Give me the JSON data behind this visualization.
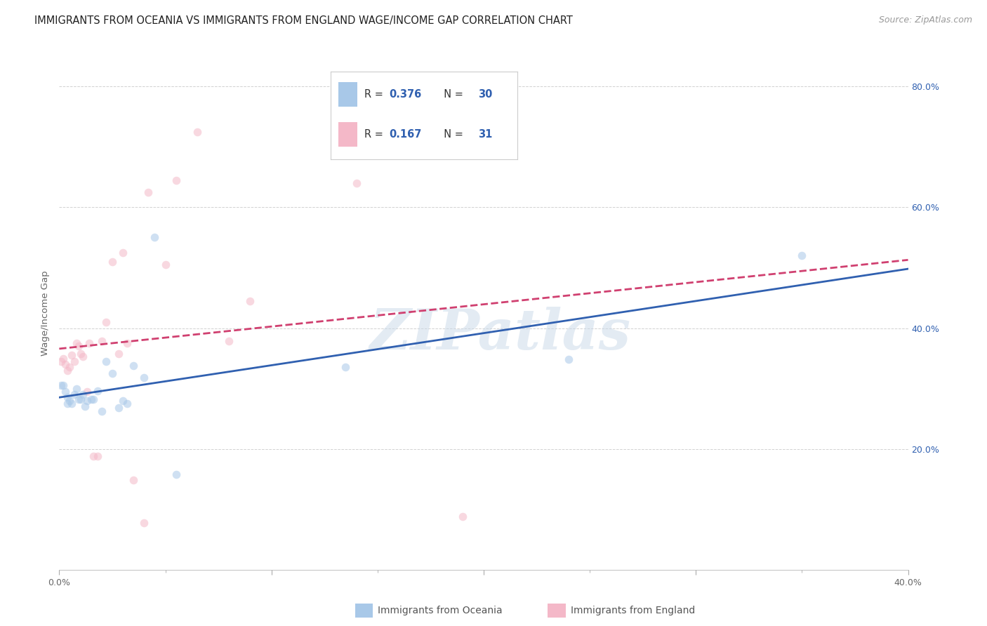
{
  "title": "IMMIGRANTS FROM OCEANIA VS IMMIGRANTS FROM ENGLAND WAGE/INCOME GAP CORRELATION CHART",
  "source": "Source: ZipAtlas.com",
  "ylabel": "Wage/Income Gap",
  "watermark": "ZIPatlas",
  "x_min": 0.0,
  "x_max": 0.4,
  "y_min": 0.0,
  "y_max": 0.85,
  "y_tick_vals": [
    0.2,
    0.4,
    0.6,
    0.8
  ],
  "y_tick_labels_right": [
    "20.0%",
    "40.0%",
    "60.0%",
    "80.0%"
  ],
  "oceania_R": 0.376,
  "oceania_N": 30,
  "england_R": 0.167,
  "england_N": 31,
  "oceania_color": "#a8c8e8",
  "england_color": "#f4b8c8",
  "oceania_line_color": "#3060b0",
  "england_line_color": "#d04070",
  "background_color": "#ffffff",
  "grid_color": "#cccccc",
  "oceania_x": [
    0.001,
    0.002,
    0.003,
    0.004,
    0.004,
    0.005,
    0.006,
    0.007,
    0.008,
    0.009,
    0.01,
    0.011,
    0.012,
    0.013,
    0.015,
    0.016,
    0.018,
    0.02,
    0.022,
    0.025,
    0.028,
    0.03,
    0.032,
    0.035,
    0.04,
    0.045,
    0.055,
    0.135,
    0.24,
    0.35
  ],
  "oceania_y": [
    0.305,
    0.305,
    0.295,
    0.285,
    0.275,
    0.28,
    0.275,
    0.29,
    0.3,
    0.282,
    0.282,
    0.29,
    0.27,
    0.28,
    0.282,
    0.282,
    0.296,
    0.262,
    0.345,
    0.325,
    0.268,
    0.28,
    0.275,
    0.338,
    0.318,
    0.55,
    0.158,
    0.335,
    0.348,
    0.52
  ],
  "england_x": [
    0.001,
    0.002,
    0.003,
    0.004,
    0.005,
    0.006,
    0.007,
    0.008,
    0.009,
    0.01,
    0.011,
    0.013,
    0.014,
    0.016,
    0.018,
    0.02,
    0.022,
    0.025,
    0.028,
    0.03,
    0.032,
    0.035,
    0.04,
    0.042,
    0.05,
    0.055,
    0.065,
    0.08,
    0.09,
    0.14,
    0.19
  ],
  "england_y": [
    0.345,
    0.35,
    0.34,
    0.33,
    0.335,
    0.355,
    0.345,
    0.375,
    0.37,
    0.358,
    0.353,
    0.295,
    0.375,
    0.188,
    0.188,
    0.378,
    0.41,
    0.51,
    0.358,
    0.525,
    0.375,
    0.148,
    0.078,
    0.625,
    0.505,
    0.645,
    0.725,
    0.378,
    0.445,
    0.64,
    0.088
  ],
  "legend_label_oceania": "Immigrants from Oceania",
  "legend_label_england": "Immigrants from England",
  "title_fontsize": 10.5,
  "source_fontsize": 9,
  "axis_label_fontsize": 9.5,
  "tick_fontsize": 9,
  "scatter_size": 70,
  "scatter_alpha": 0.55
}
